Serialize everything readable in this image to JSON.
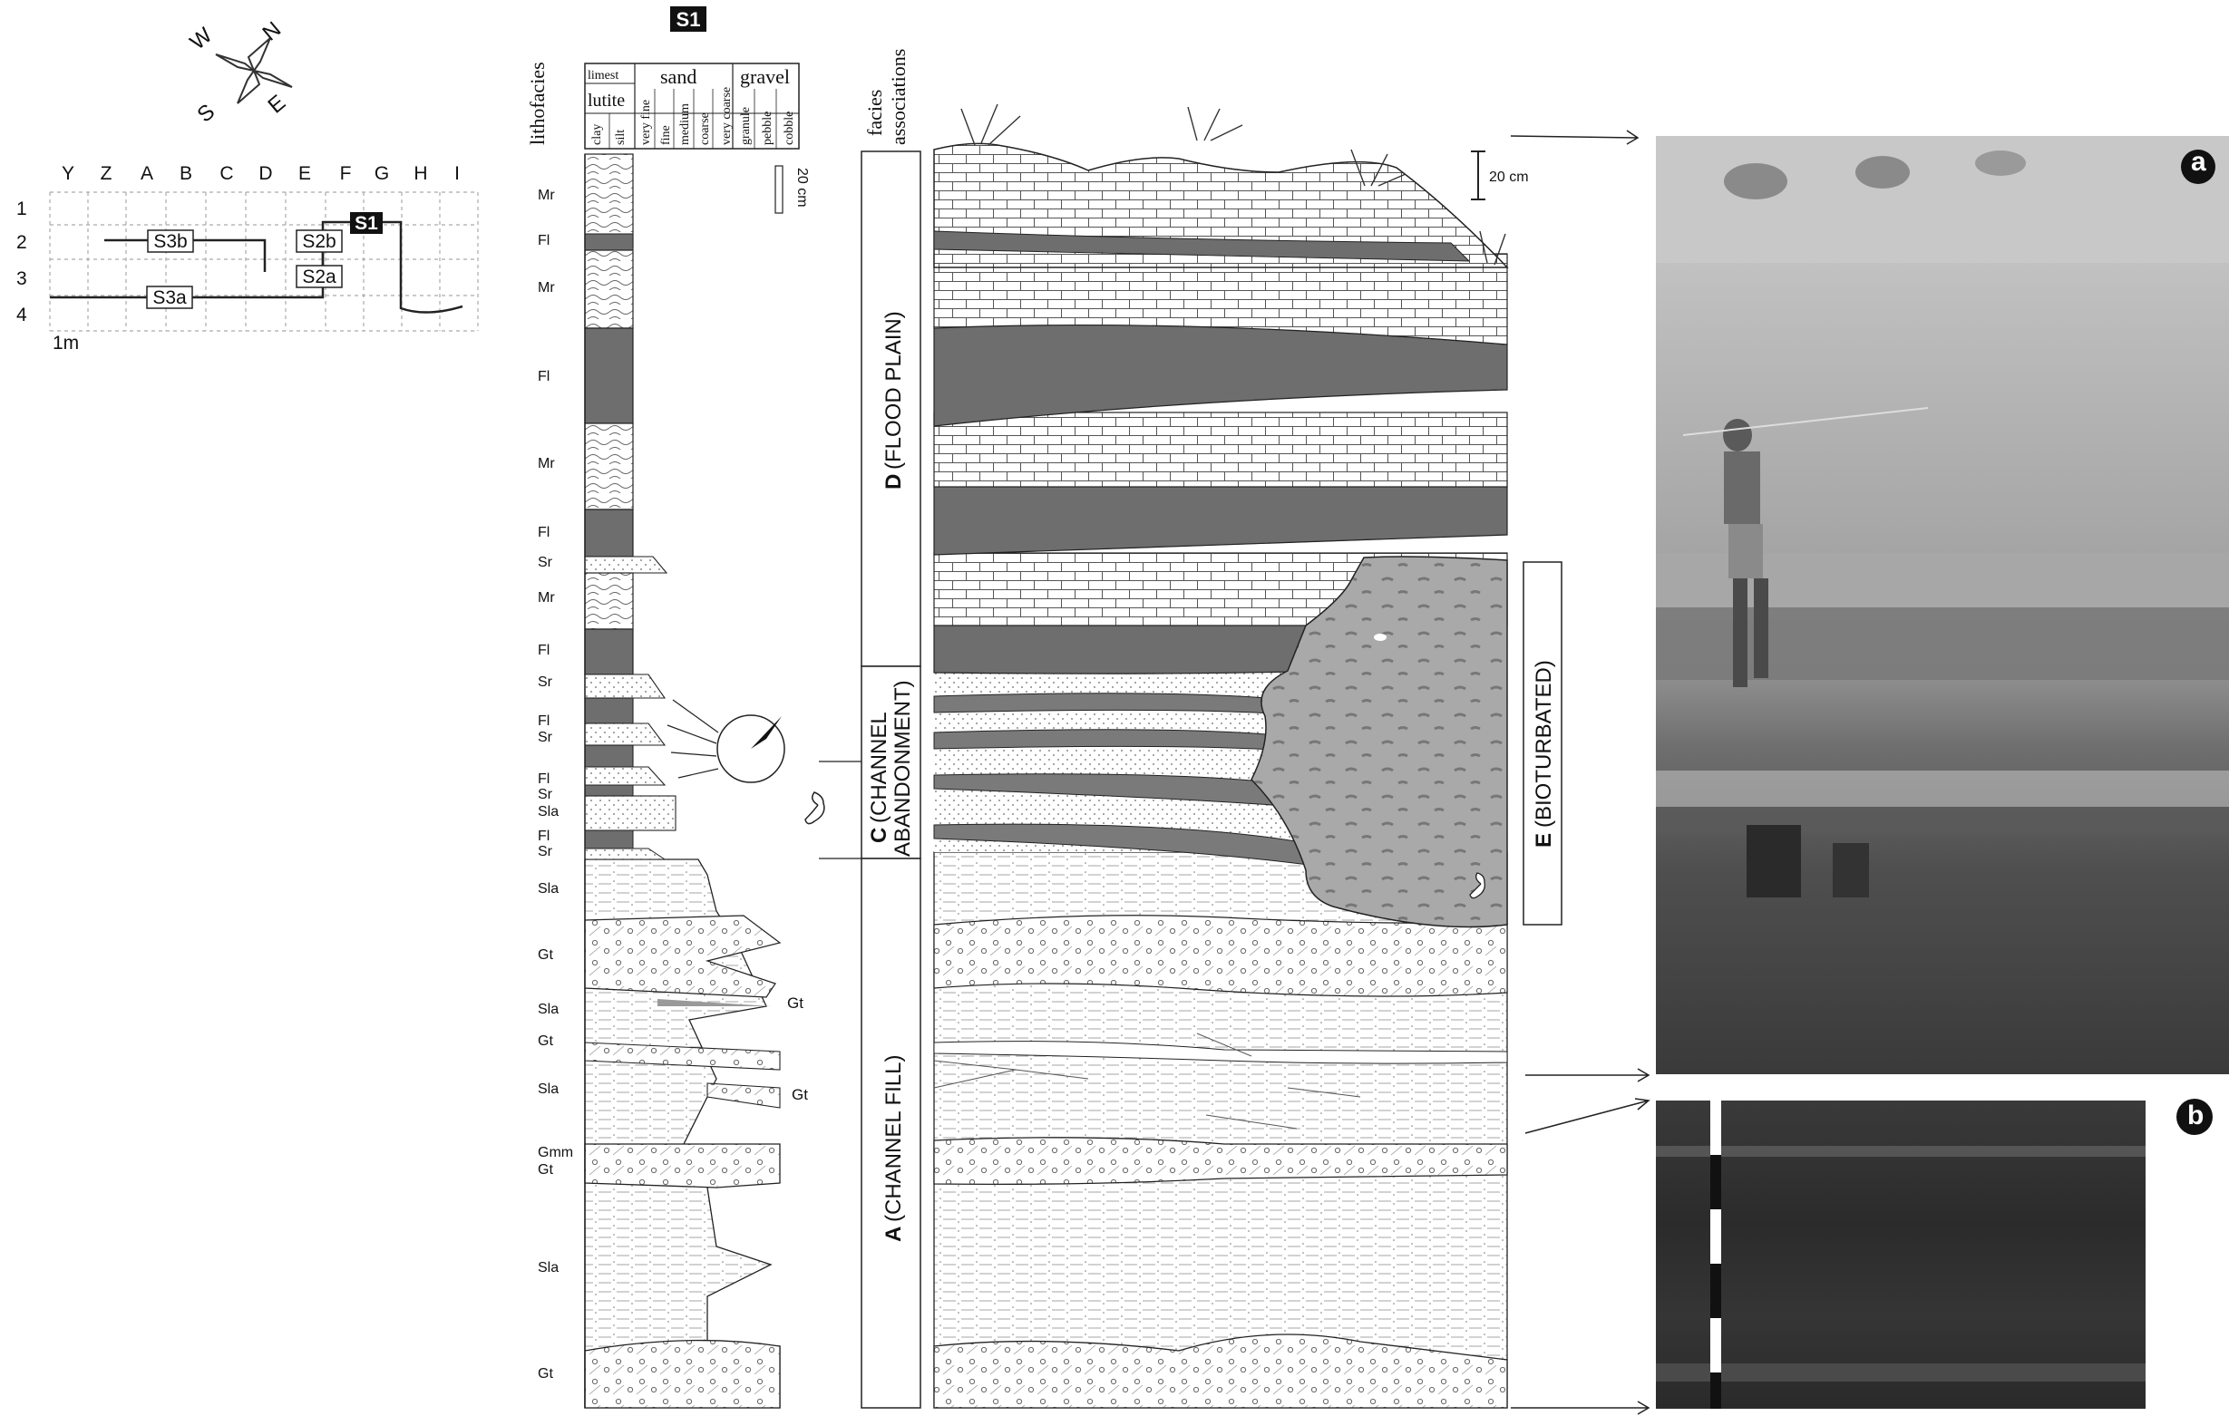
{
  "section_id": "S1",
  "map": {
    "columns": [
      "Y",
      "Z",
      "A",
      "B",
      "C",
      "D",
      "E",
      "F",
      "G",
      "H",
      "I"
    ],
    "rows": [
      "1",
      "2",
      "3",
      "4"
    ],
    "scale_label": "1m",
    "section_labels": {
      "s3b": "S3b",
      "s2b": "S2b",
      "s1": "S1",
      "s2a": "S2a",
      "s3a": "S3a"
    }
  },
  "compass": {
    "w": "W",
    "n": "N",
    "s": "S",
    "e": "E"
  },
  "headers": {
    "lithofacies": "lithofacies",
    "facies_associations": "facies associations",
    "limest": "limest",
    "lutite": "lutite",
    "sand": "sand",
    "gravel": "gravel",
    "grain_sizes": [
      "clay",
      "silt",
      "very fine",
      "fine",
      "medium",
      "coarse",
      "very coarse",
      "granule",
      "pebble",
      "cobble"
    ],
    "log_scale": "20 cm",
    "panel_scale": "20 cm"
  },
  "lithofacies_codes": [
    "Mr",
    "Fl",
    "Mr",
    "Fl",
    "Mr",
    "Fl",
    "Sr",
    "Mr",
    "Fl",
    "Sr",
    "Fl",
    "Sr",
    "Fl",
    "Sr",
    "Sla",
    "Fl",
    "Sr",
    "Sla",
    "Gt",
    "Sla",
    "Gt",
    "Sla",
    "Gmm",
    "Gt",
    "Sla",
    "Gt"
  ],
  "side_labels": [
    "Gt",
    "Gt"
  ],
  "facies": {
    "d": {
      "letter": "D",
      "text": "(FLOOD PLAIN)"
    },
    "c": {
      "letter": "C",
      "text1": "(CHANNEL",
      "text2": "ABANDONMENT)"
    },
    "a": {
      "letter": "A",
      "text": "(CHANNEL FILL)"
    },
    "e": {
      "letter": "E",
      "text": "(BIOTURBATED)"
    }
  },
  "photo_labels": {
    "a": "a",
    "b": "b"
  }
}
